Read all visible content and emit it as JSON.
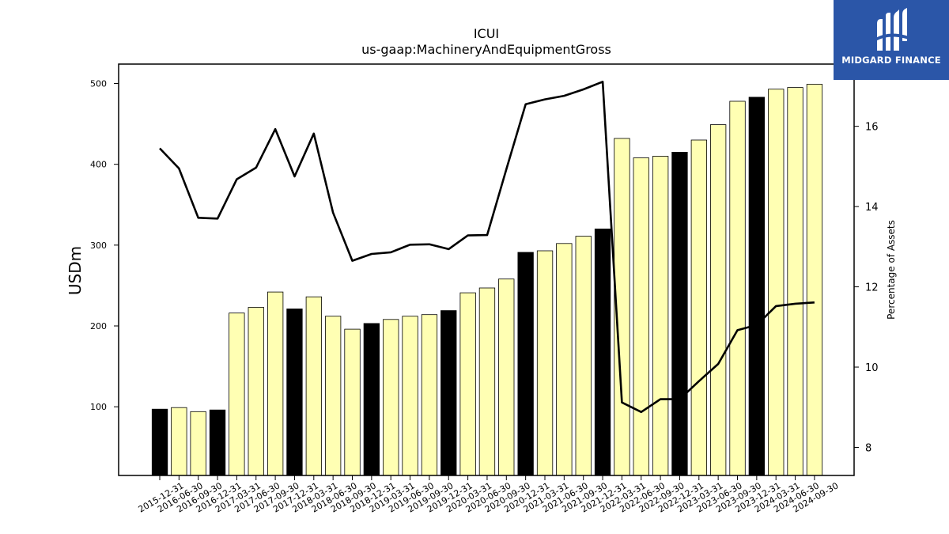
{
  "chart_data": {
    "type": "bar",
    "title": "ICUI",
    "subtitle": "us-gaap:MachineryAndEquipmentGross",
    "ylabel": "USDm",
    "y2label": "Percentage of Assets",
    "ylim": [
      15,
      524
    ],
    "y2lim": [
      7.3,
      17.55
    ],
    "yticks": [
      100,
      200,
      300,
      400,
      500
    ],
    "y2ticks": [
      8,
      10,
      12,
      14,
      16
    ],
    "categories": [
      "2015-12-31",
      "2016-06-30",
      "2016-09-30",
      "2016-12-31",
      "2017-03-31",
      "2017-06-30",
      "2017-09-30",
      "2017-12-31",
      "2018-03-31",
      "2018-06-30",
      "2018-09-30",
      "2018-12-31",
      "2019-03-31",
      "2019-06-30",
      "2019-09-30",
      "2019-12-31",
      "2020-03-31",
      "2020-06-30",
      "2020-09-30",
      "2020-12-31",
      "2021-03-31",
      "2021-06-30",
      "2021-09-30",
      "2021-12-31",
      "2022-03-31",
      "2022-06-30",
      "2022-09-30",
      "2022-12-31",
      "2023-03-31",
      "2023-06-30",
      "2023-09-30",
      "2023-12-31",
      "2024-03-31",
      "2024-06-30",
      "2024-09-30"
    ],
    "series": [
      {
        "type": "bar",
        "values": [
          97,
          99,
          94,
          96,
          216,
          223,
          242,
          221,
          236,
          212,
          196,
          203,
          208,
          212,
          214,
          219,
          241,
          247,
          258,
          291,
          293,
          302,
          311,
          320,
          432,
          408,
          410,
          415,
          430,
          449,
          478,
          483,
          493,
          495,
          499
        ]
      },
      {
        "type": "line",
        "axis": "right",
        "values": [
          15.45,
          14.95,
          13.72,
          13.7,
          14.68,
          14.97,
          15.93,
          14.75,
          15.82,
          13.85,
          12.65,
          12.82,
          12.86,
          13.05,
          13.06,
          12.94,
          13.28,
          13.29,
          14.93,
          16.55,
          16.67,
          16.76,
          16.92,
          17.11,
          9.12,
          8.88,
          9.2,
          9.2,
          9.65,
          10.08,
          10.92,
          11.05,
          11.52,
          11.58,
          11.61
        ]
      }
    ],
    "bar_highlight_pattern": "year-end (12-31) bars black, others pale yellow",
    "colors": {
      "bar_yearend": "#000000",
      "bar_other": "#ffffb3",
      "line": "#000000"
    }
  },
  "logo": {
    "text": "MIDGARD FINANCE",
    "bg": "#2b56a8"
  }
}
